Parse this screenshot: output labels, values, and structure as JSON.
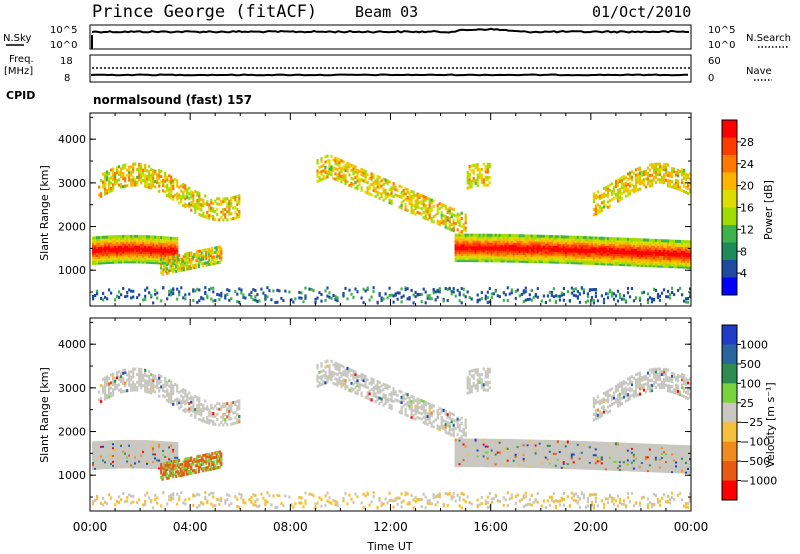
{
  "header": {
    "station": "Prince George (fitACF)",
    "beam": "Beam 03",
    "date": "01/Oct/2010"
  },
  "param_panels": {
    "nsky_label": "N.Sky",
    "nsearch_label": "N.Search",
    "noise_left_ticks": [
      "10^5",
      "10^0"
    ],
    "noise_right_ticks": [
      "10^5",
      "10^0"
    ],
    "freq_label_1": "Freq.",
    "freq_label_2": "[MHz]",
    "freq_ticks": [
      "18",
      "8"
    ],
    "nave_label": "Nave",
    "nave_ticks": [
      "60",
      "0"
    ],
    "cpid_label": "CPID",
    "cpid_value": "normalsound (fast) 157"
  },
  "chart_data": [
    {
      "type": "heatmap",
      "title": "",
      "xlabel": "",
      "ylabel": "Slant Range [km]",
      "xlim": [
        0,
        24
      ],
      "ylim": [
        180,
        4600
      ],
      "y_ticks": [
        "1000",
        "2000",
        "3000",
        "4000"
      ],
      "colorbar_label": "Power [dB]",
      "colorbar_ticks": [
        "28",
        "24",
        "20",
        "16",
        "12",
        "8",
        "4"
      ],
      "colorbar_colors": [
        "#ff0000",
        "#ff3c00",
        "#ff7800",
        "#ffb400",
        "#dddd00",
        "#a0dc00",
        "#3cb44b",
        "#1e8c5a",
        "#1e4ba0",
        "#0000ff"
      ]
    },
    {
      "type": "heatmap",
      "title": "",
      "xlabel": "Time UT",
      "ylabel": "Slant Range [km]",
      "xlim": [
        0,
        24
      ],
      "ylim": [
        180,
        4600
      ],
      "x_ticks": [
        "00:00",
        "04:00",
        "08:00",
        "12:00",
        "16:00",
        "20:00",
        "00:00"
      ],
      "y_ticks": [
        "1000",
        "2000",
        "3000",
        "4000"
      ],
      "colorbar_label": "Velocity [m s⁻¹]",
      "colorbar_ticks": [
        "1000",
        "500",
        "100",
        "25",
        "−25",
        "−100",
        "−500",
        "−1000"
      ],
      "colorbar_colors": [
        "#1e3cc8",
        "#2864a0",
        "#2f8c50",
        "#7ad23c",
        "#c8c8c0",
        "#f5c03c",
        "#f08c1e",
        "#e85a14",
        "#ff0000"
      ]
    }
  ]
}
